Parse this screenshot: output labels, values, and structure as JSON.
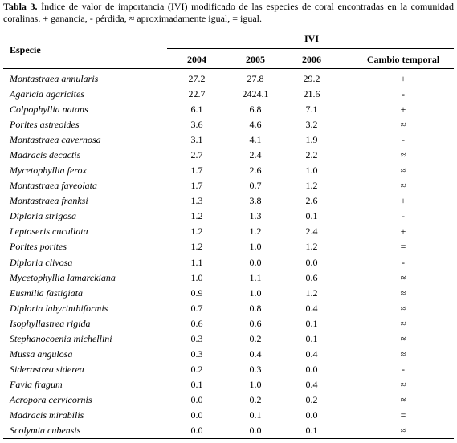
{
  "caption": {
    "label": "Tabla 3.",
    "text": "Índice de valor de importancia (IVI) modificado de las especies de coral encontradas en la comunidad coralinas. + ganancia, - pérdida, ≈ aproximadamente igual, = igual."
  },
  "table": {
    "header": {
      "species": "Especie",
      "group": "IVI",
      "columns": [
        "2004",
        "2005",
        "2006",
        "Cambio temporal"
      ]
    },
    "rows": [
      [
        "Montastraea annularis",
        "27.2",
        "27.8",
        "29.2",
        "+"
      ],
      [
        "Agaricia agaricites",
        "22.7",
        "2424.1",
        "21.6",
        "-"
      ],
      [
        "Colpophyllia natans",
        "6.1",
        "6.8",
        "7.1",
        "+"
      ],
      [
        "Porites astreoides",
        "3.6",
        "4.6",
        "3.2",
        "≈"
      ],
      [
        "Montastraea cavernosa",
        "3.1",
        "4.1",
        "1.9",
        "-"
      ],
      [
        "Madracis decactis",
        "2.7",
        "2.4",
        "2.2",
        "≈"
      ],
      [
        "Mycetophyllia ferox",
        "1.7",
        "2.6",
        "1.0",
        "≈"
      ],
      [
        "Montastraea faveolata",
        "1.7",
        "0.7",
        "1.2",
        "≈"
      ],
      [
        "Montastraea franksi",
        "1.3",
        "3.8",
        "2.6",
        "+"
      ],
      [
        "Diploria strigosa",
        "1.2",
        "1.3",
        "0.1",
        "-"
      ],
      [
        "Leptoseris cucullata",
        "1.2",
        "1.2",
        "2.4",
        "+"
      ],
      [
        "Porites porites",
        "1.2",
        "1.0",
        "1.2",
        "="
      ],
      [
        "Diploria clivosa",
        "1.1",
        "0.0",
        "0.0",
        "-"
      ],
      [
        "Mycetophyllia lamarckiana",
        "1.0",
        "1.1",
        "0.6",
        "≈"
      ],
      [
        "Eusmilia fastigiata",
        "0.9",
        "1.0",
        "1.2",
        "≈"
      ],
      [
        "Diploria labyrinthiformis",
        "0.7",
        "0.8",
        "0.4",
        "≈"
      ],
      [
        "Isophyllastrea rigida",
        "0.6",
        "0.6",
        "0.1",
        "≈"
      ],
      [
        "Stephanocoenia michellini",
        "0.3",
        "0.2",
        "0.1",
        "≈"
      ],
      [
        "Mussa angulosa",
        "0.3",
        "0.4",
        "0.4",
        "≈"
      ],
      [
        "Siderastrea siderea",
        "0.2",
        "0.3",
        "0.0",
        "-"
      ],
      [
        "Favia fragum",
        "0.1",
        "1.0",
        "0.4",
        "≈"
      ],
      [
        "Acropora cervicornis",
        "0.0",
        "0.2",
        "0.2",
        "≈"
      ],
      [
        "Madracis mirabilis",
        "0.0",
        "0.1",
        "0.0",
        "="
      ],
      [
        "Scolymia cubensis",
        "0.0",
        "0.0",
        "0.1",
        "≈"
      ]
    ]
  }
}
